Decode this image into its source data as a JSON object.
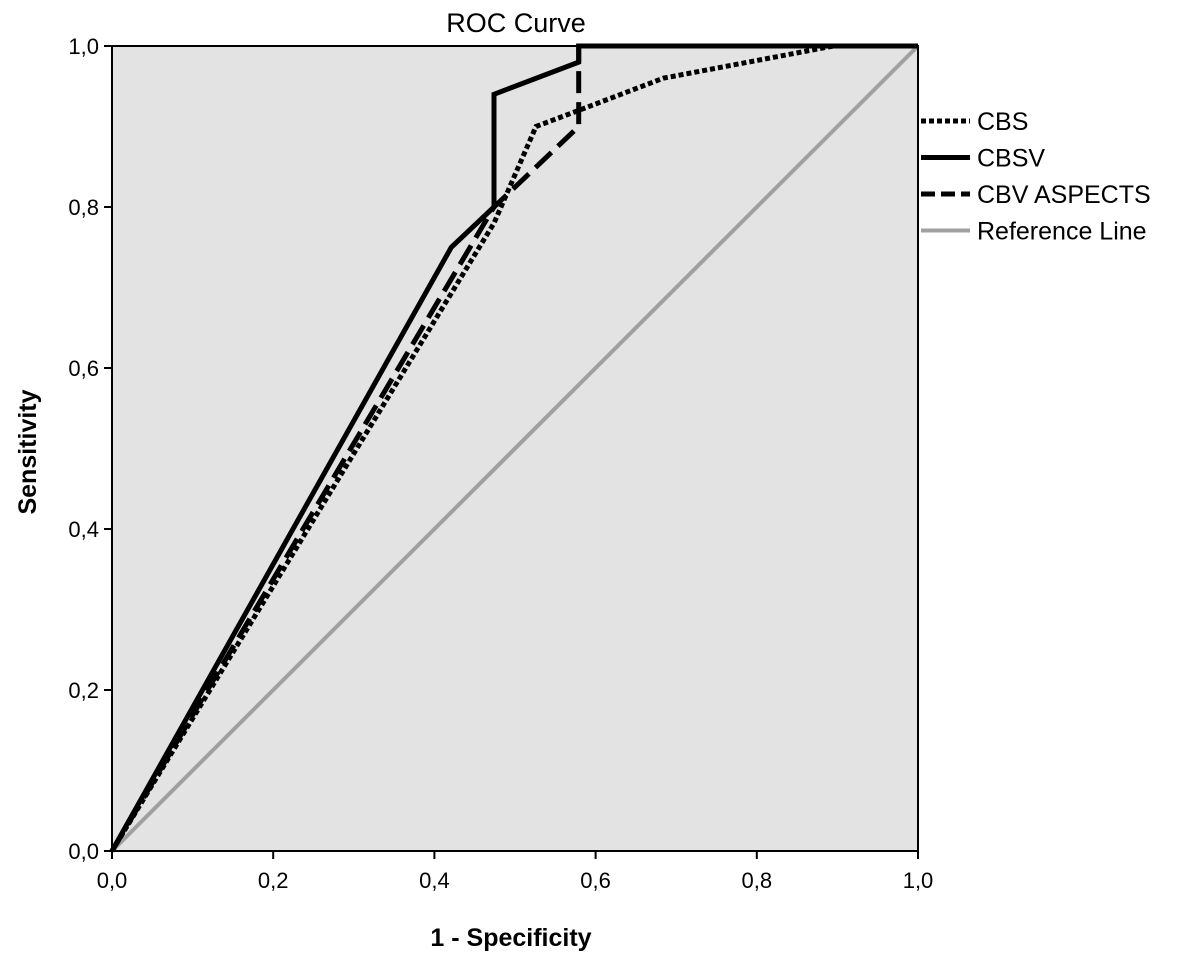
{
  "chart_data": {
    "type": "line",
    "title": "ROC Curve",
    "xlabel": "1 - Specificity",
    "ylabel": "Sensitivity",
    "xlim": [
      0,
      1
    ],
    "ylim": [
      0,
      1
    ],
    "xticks": [
      "0,0",
      "0,2",
      "0,4",
      "0,6",
      "0,8",
      "1,0"
    ],
    "yticks": [
      "0,0",
      "0,2",
      "0,4",
      "0,6",
      "0,8",
      "1,0"
    ],
    "grid": false,
    "legend_position": "right",
    "plot_background": "#e3e3e3",
    "series": [
      {
        "name": "CBS",
        "style": "dotted",
        "color": "#000000",
        "x": [
          0,
          0.474,
          0.526,
          0.579,
          0.684,
          0.895,
          1.0
        ],
        "y": [
          0,
          0.78,
          0.9,
          0.92,
          0.96,
          1.0,
          1.0
        ]
      },
      {
        "name": "CBSV",
        "style": "solid",
        "color": "#000000",
        "x": [
          0,
          0.421,
          0.474,
          0.474,
          0.579,
          0.579,
          1.0
        ],
        "y": [
          0,
          0.75,
          0.8,
          0.94,
          0.98,
          1.0,
          1.0
        ]
      },
      {
        "name": "CBV ASPECTS",
        "style": "dashed",
        "color": "#000000",
        "x": [
          0,
          0.474,
          0.579,
          0.579,
          1.0
        ],
        "y": [
          0,
          0.8,
          0.9,
          1.0,
          1.0
        ]
      },
      {
        "name": "Reference Line",
        "style": "solid",
        "color": "#a0a0a0",
        "x": [
          0,
          1
        ],
        "y": [
          0,
          1
        ]
      }
    ]
  }
}
